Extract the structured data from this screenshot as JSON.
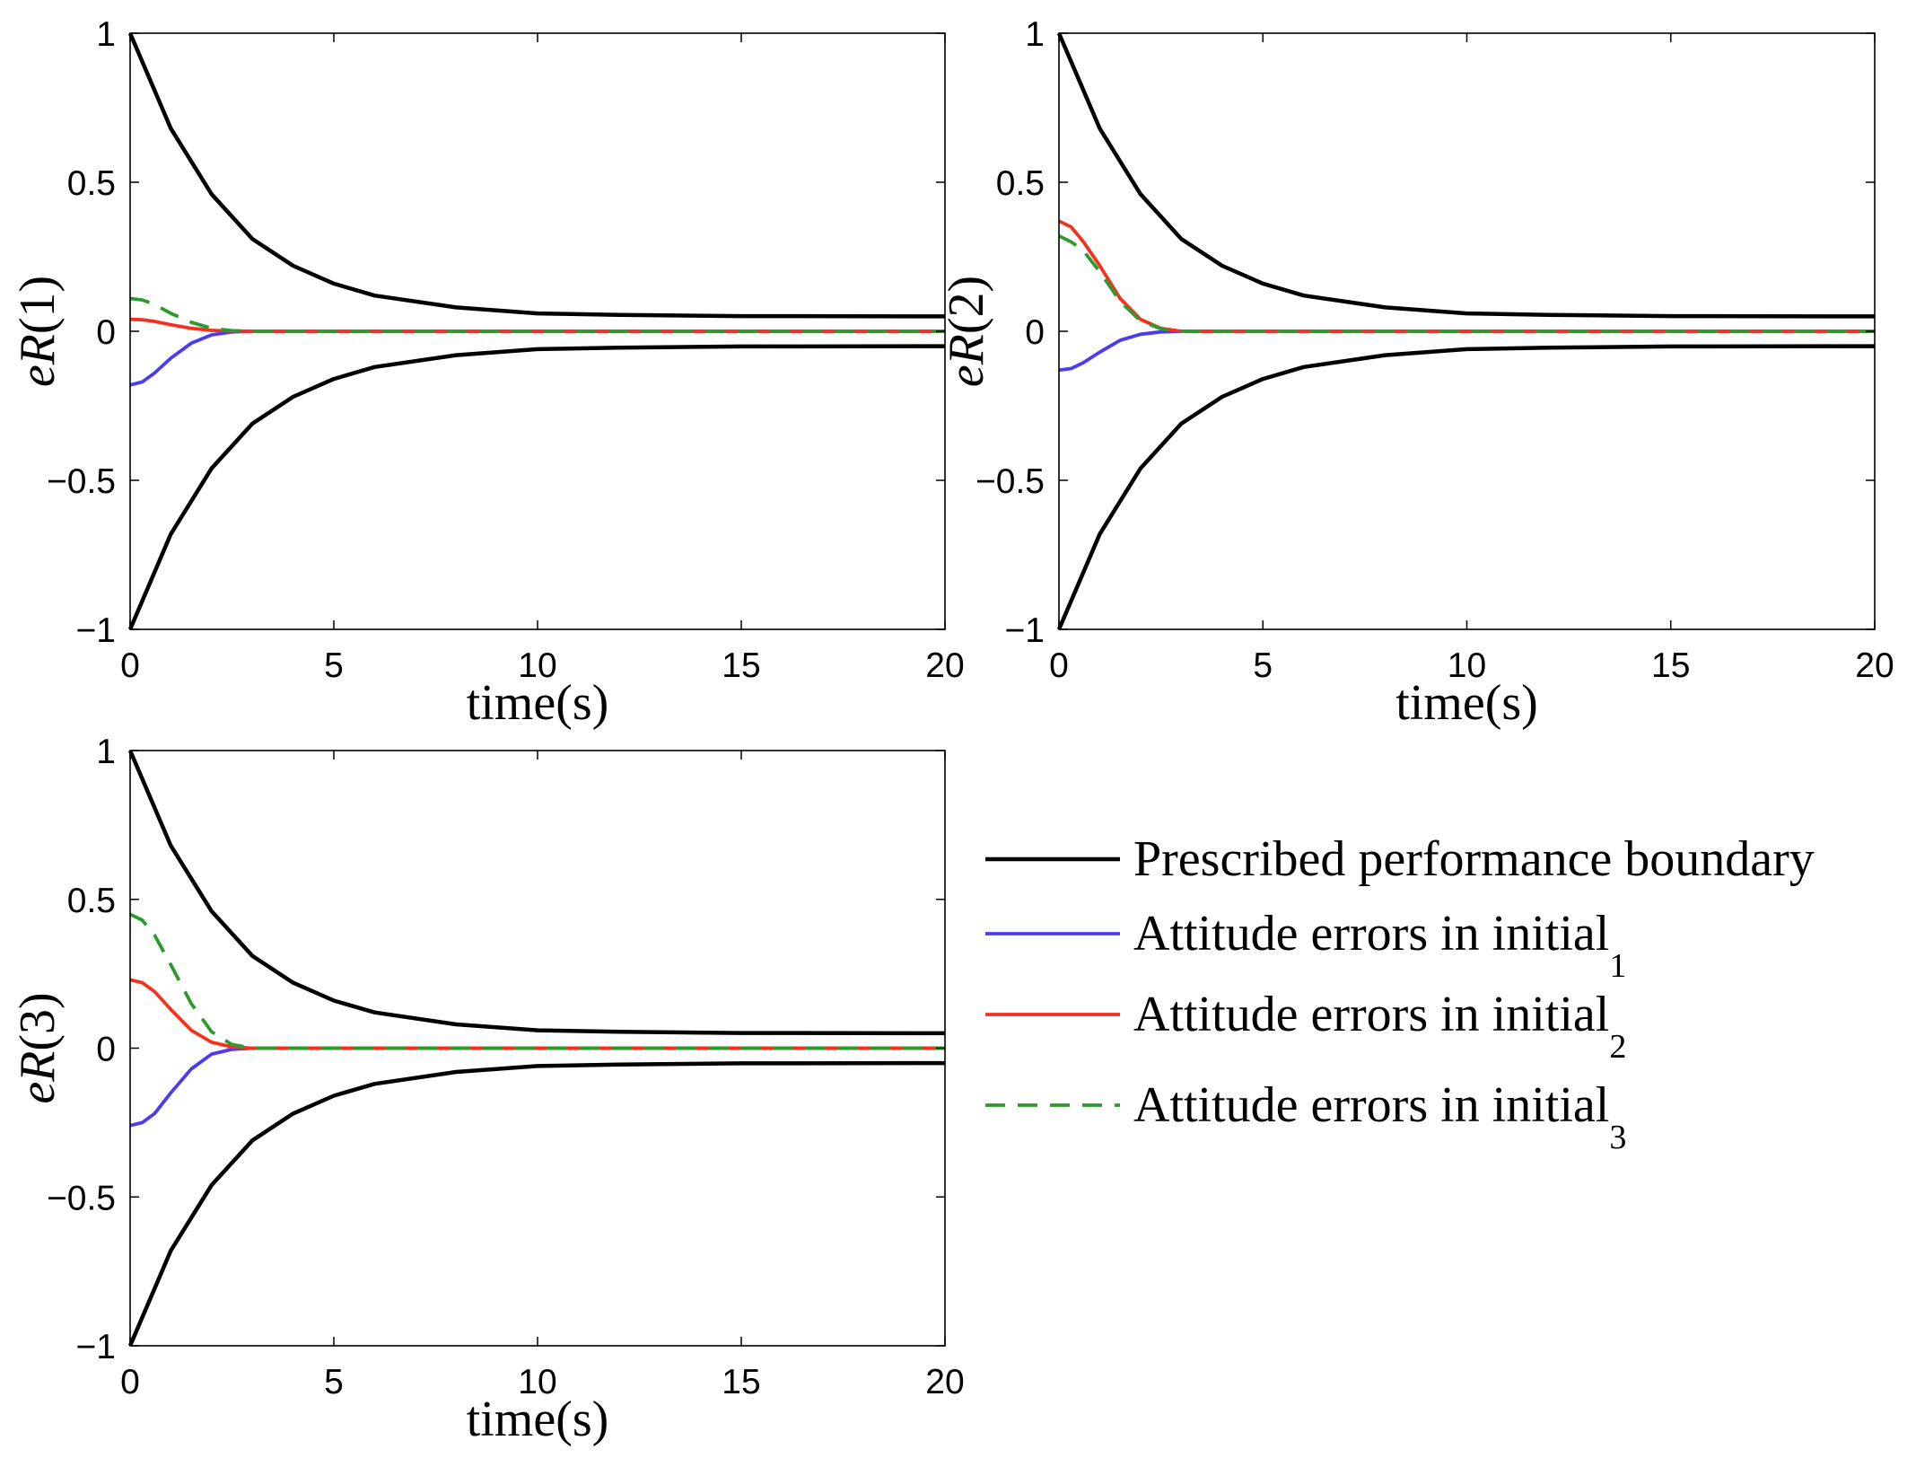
{
  "chart_data": [
    {
      "type": "line",
      "id": "eR1",
      "ylabel_italic": "eR",
      "ylabel_suffix": "(1)",
      "xlabel": "time(s)",
      "xlim": [
        0,
        20
      ],
      "ylim": [
        -1,
        1
      ],
      "xticks": [
        0,
        5,
        10,
        15,
        20
      ],
      "xtick_labels": [
        "0",
        "5",
        "10",
        "15",
        "20"
      ],
      "yticks": [
        -1,
        -0.5,
        0,
        0.5,
        1
      ],
      "ytick_labels": [
        "−1",
        "−0.5",
        "0",
        "0.5",
        "1"
      ],
      "series": [
        {
          "name": "Prescribed performance boundary (upper)",
          "x": [
            0,
            1,
            2,
            3,
            4,
            5,
            6,
            8,
            10,
            12,
            15,
            20
          ],
          "y": [
            1,
            0.68,
            0.46,
            0.31,
            0.22,
            0.16,
            0.12,
            0.08,
            0.06,
            0.055,
            0.051,
            0.05
          ]
        },
        {
          "name": "Prescribed performance boundary (lower)",
          "x": [
            0,
            1,
            2,
            3,
            4,
            5,
            6,
            8,
            10,
            12,
            15,
            20
          ],
          "y": [
            -1,
            -0.68,
            -0.46,
            -0.31,
            -0.22,
            -0.16,
            -0.12,
            -0.08,
            -0.06,
            -0.055,
            -0.051,
            -0.05
          ]
        },
        {
          "name": "Attitude errors in initial1",
          "x": [
            0,
            0.3,
            0.6,
            1.0,
            1.5,
            2.0,
            2.5,
            3.0,
            20
          ],
          "y": [
            -0.18,
            -0.17,
            -0.14,
            -0.09,
            -0.04,
            -0.012,
            -0.002,
            0,
            0
          ]
        },
        {
          "name": "Attitude errors in initial2",
          "x": [
            0,
            0.3,
            0.6,
            1.0,
            1.5,
            2.0,
            2.5,
            3.0,
            20
          ],
          "y": [
            0.04,
            0.039,
            0.033,
            0.022,
            0.01,
            0.003,
            0.001,
            0,
            0
          ]
        },
        {
          "name": "Attitude errors in initial3",
          "x": [
            0,
            0.3,
            0.6,
            1.0,
            1.5,
            2.0,
            2.5,
            3.0,
            20
          ],
          "y": [
            0.11,
            0.105,
            0.09,
            0.06,
            0.03,
            0.01,
            0.002,
            0,
            0
          ]
        }
      ]
    },
    {
      "type": "line",
      "id": "eR2",
      "ylabel_italic": "eR",
      "ylabel_suffix": "(2)",
      "xlabel": "time(s)",
      "xlim": [
        0,
        20
      ],
      "ylim": [
        -1,
        1
      ],
      "xticks": [
        0,
        5,
        10,
        15,
        20
      ],
      "xtick_labels": [
        "0",
        "5",
        "10",
        "15",
        "20"
      ],
      "yticks": [
        -1,
        -0.5,
        0,
        0.5,
        1
      ],
      "ytick_labels": [
        "−1",
        "−0.5",
        "0",
        "0.5",
        "1"
      ],
      "series": [
        {
          "name": "Prescribed performance boundary (upper)",
          "x": [
            0,
            1,
            2,
            3,
            4,
            5,
            6,
            8,
            10,
            12,
            15,
            20
          ],
          "y": [
            1,
            0.68,
            0.46,
            0.31,
            0.22,
            0.16,
            0.12,
            0.08,
            0.06,
            0.055,
            0.051,
            0.05
          ]
        },
        {
          "name": "Prescribed performance boundary (lower)",
          "x": [
            0,
            1,
            2,
            3,
            4,
            5,
            6,
            8,
            10,
            12,
            15,
            20
          ],
          "y": [
            -1,
            -0.68,
            -0.46,
            -0.31,
            -0.22,
            -0.16,
            -0.12,
            -0.08,
            -0.06,
            -0.055,
            -0.051,
            -0.05
          ]
        },
        {
          "name": "Attitude errors in initial1",
          "x": [
            0,
            0.3,
            0.6,
            1.0,
            1.5,
            2.0,
            2.5,
            3.0,
            20
          ],
          "y": [
            -0.13,
            -0.125,
            -0.105,
            -0.07,
            -0.03,
            -0.01,
            -0.002,
            0,
            0
          ]
        },
        {
          "name": "Attitude errors in initial2",
          "x": [
            0,
            0.3,
            0.6,
            1.0,
            1.5,
            2.0,
            2.5,
            3.0,
            20
          ],
          "y": [
            0.37,
            0.35,
            0.3,
            0.22,
            0.11,
            0.04,
            0.01,
            0,
            0
          ]
        },
        {
          "name": "Attitude errors in initial3",
          "x": [
            0,
            0.3,
            0.6,
            1.0,
            1.5,
            2.0,
            2.5,
            3.0,
            20
          ],
          "y": [
            0.32,
            0.3,
            0.27,
            0.2,
            0.1,
            0.035,
            0.008,
            0,
            0
          ]
        }
      ]
    },
    {
      "type": "line",
      "id": "eR3",
      "ylabel_italic": "eR",
      "ylabel_suffix": "(3)",
      "xlabel": "time(s)",
      "xlim": [
        0,
        20
      ],
      "ylim": [
        -1,
        1
      ],
      "xticks": [
        0,
        5,
        10,
        15,
        20
      ],
      "xtick_labels": [
        "0",
        "5",
        "10",
        "15",
        "20"
      ],
      "yticks": [
        -1,
        -0.5,
        0,
        0.5,
        1
      ],
      "ytick_labels": [
        "−1",
        "−0.5",
        "0",
        "0.5",
        "1"
      ],
      "series": [
        {
          "name": "Prescribed performance boundary (upper)",
          "x": [
            0,
            1,
            2,
            3,
            4,
            5,
            6,
            8,
            10,
            12,
            15,
            20
          ],
          "y": [
            1,
            0.68,
            0.46,
            0.31,
            0.22,
            0.16,
            0.12,
            0.08,
            0.06,
            0.055,
            0.051,
            0.05
          ]
        },
        {
          "name": "Prescribed performance boundary (lower)",
          "x": [
            0,
            1,
            2,
            3,
            4,
            5,
            6,
            8,
            10,
            12,
            15,
            20
          ],
          "y": [
            -1,
            -0.68,
            -0.46,
            -0.31,
            -0.22,
            -0.16,
            -0.12,
            -0.08,
            -0.06,
            -0.055,
            -0.051,
            -0.05
          ]
        },
        {
          "name": "Attitude errors in initial1",
          "x": [
            0,
            0.3,
            0.6,
            1.0,
            1.5,
            2.0,
            2.5,
            3.0,
            20
          ],
          "y": [
            -0.26,
            -0.25,
            -0.22,
            -0.15,
            -0.07,
            -0.02,
            -0.004,
            0,
            0
          ]
        },
        {
          "name": "Attitude errors in initial2",
          "x": [
            0,
            0.3,
            0.6,
            1.0,
            1.5,
            2.0,
            2.5,
            3.0,
            20
          ],
          "y": [
            0.23,
            0.22,
            0.19,
            0.13,
            0.06,
            0.02,
            0.004,
            0,
            0
          ]
        },
        {
          "name": "Attitude errors in initial3",
          "x": [
            0,
            0.3,
            0.6,
            1.0,
            1.5,
            2.0,
            2.5,
            3.0,
            20
          ],
          "y": [
            0.45,
            0.43,
            0.38,
            0.28,
            0.15,
            0.055,
            0.012,
            0,
            0
          ]
        }
      ]
    }
  ],
  "legend": {
    "placement": "right of bottom plot",
    "entries": [
      {
        "label": "Prescribed performance boundary",
        "sub": "",
        "color": "#000000",
        "dash": false
      },
      {
        "label": "Attitude errors in initial",
        "sub": "1",
        "color": "#4a3cf5",
        "dash": false
      },
      {
        "label": "Attitude errors in initial",
        "sub": "2",
        "color": "#f5311e",
        "dash": false
      },
      {
        "label": "Attitude errors in initial",
        "sub": "3",
        "color": "#2e9a2e",
        "dash": true
      }
    ]
  },
  "colors": {
    "boundary": "#000000",
    "initial1": "#4a3cf5",
    "initial2": "#f5311e",
    "initial3": "#2e9a2e"
  }
}
